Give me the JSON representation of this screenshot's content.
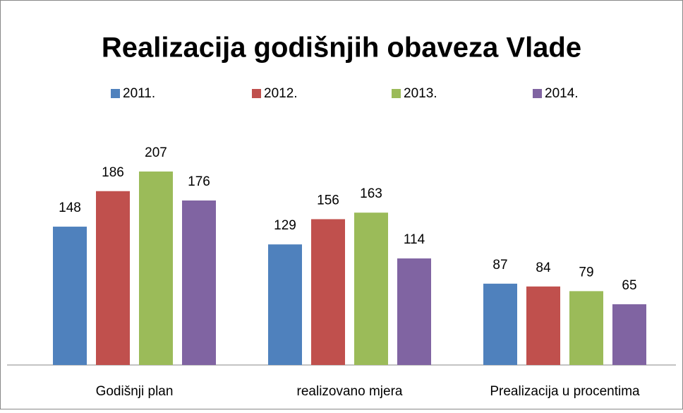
{
  "chart_data": {
    "type": "bar",
    "title": "Realizacija godišnjih obaveza Vlade",
    "categories": [
      "Godišnji plan",
      "realizovano mjera",
      "Prealizacija u procentima"
    ],
    "series": [
      {
        "name": "2011.",
        "color": "#4f81bd",
        "values": [
          148,
          129,
          87
        ]
      },
      {
        "name": "2012.",
        "color": "#c0504d",
        "values": [
          186,
          156,
          84
        ]
      },
      {
        "name": "2013.",
        "color": "#9bbb59",
        "values": [
          207,
          163,
          79
        ]
      },
      {
        "name": "2014.",
        "color": "#8064a2",
        "values": [
          176,
          114,
          65
        ]
      }
    ],
    "legend": "top"
  }
}
